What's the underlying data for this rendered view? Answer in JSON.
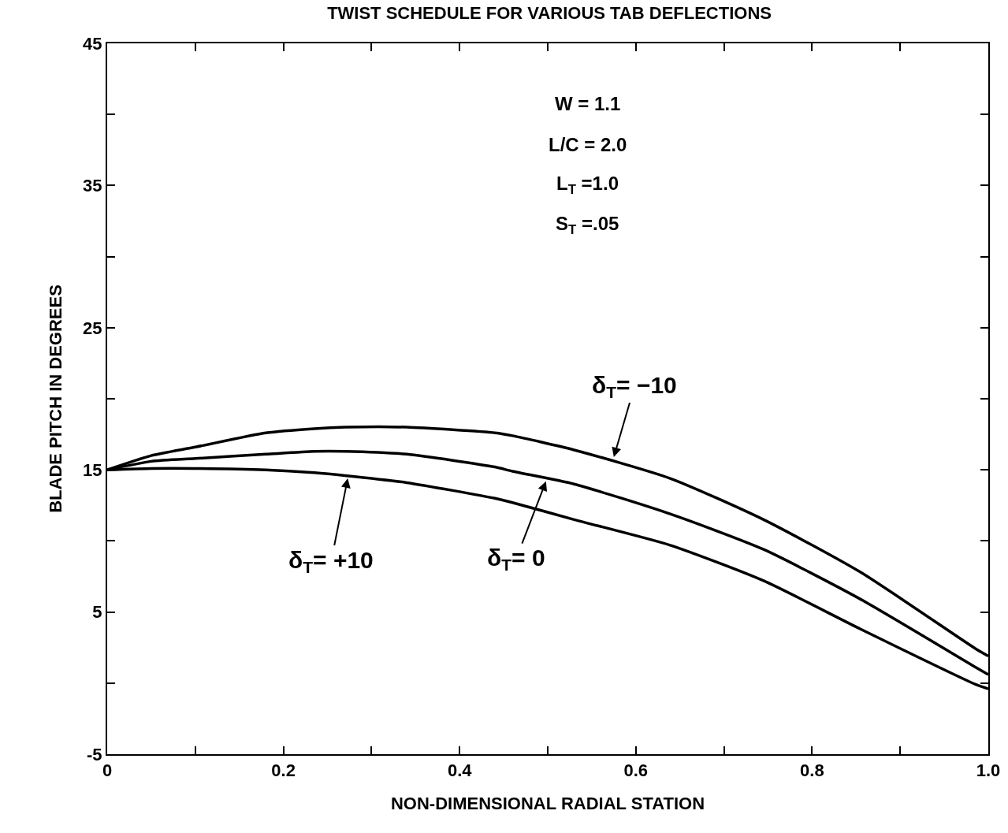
{
  "chart_data": {
    "type": "line",
    "title": "TWIST SCHEDULE FOR VARIOUS TAB DEFLECTIONS",
    "xlabel": "NON-DIMENSIONAL RADIAL STATION",
    "ylabel": "BLADE PITCH IN DEGREES",
    "x": [
      0,
      0.05,
      0.1,
      0.18,
      0.235,
      0.27,
      0.34,
      0.44,
      0.46,
      0.53,
      0.639,
      0.745,
      0.855,
      0.986,
      1.0
    ],
    "series": [
      {
        "color": "#000000",
        "values": [
          15,
          16.0,
          16.6,
          17.6,
          17.9,
          18.0,
          18.0,
          17.6,
          17.4,
          16.4,
          14.4,
          11.5,
          7.8,
          2.4,
          1.9
        ]
      },
      {
        "color": "#000000",
        "values": [
          15,
          15.6,
          15.8,
          16.1,
          16.3,
          16.3,
          16.1,
          15.2,
          14.9,
          14.0,
          11.9,
          9.4,
          5.9,
          1.1,
          0.6
        ]
      },
      {
        "color": "#000000",
        "values": [
          15,
          15.1,
          15.1,
          15.0,
          14.8,
          14.6,
          14.1,
          13.0,
          12.7,
          11.5,
          9.7,
          7.2,
          3.8,
          -0.1,
          -0.4
        ]
      }
    ],
    "xlim": [
      0,
      1.0
    ],
    "ylim": [
      -5,
      45
    ],
    "xticks": [
      0,
      {
        "value": 0.1,
        "label": null
      },
      0.2,
      {
        "value": 0.3,
        "label": null
      },
      0.4,
      {
        "value": 0.5,
        "label": null
      },
      0.6,
      {
        "value": 0.7,
        "label": null
      },
      0.8,
      {
        "value": 0.9,
        "label": null
      },
      {
        "value": 1.0,
        "label": "1.0"
      }
    ],
    "yticks": [
      -5,
      {
        "value": 0,
        "label": null
      },
      5,
      {
        "value": 10,
        "label": null
      },
      15,
      {
        "value": 20,
        "label": null
      },
      25,
      {
        "value": 30,
        "label": null
      },
      35,
      {
        "value": 40,
        "label": null
      },
      45
    ],
    "annotations": [
      {
        "text": "δ$_{T}$= −10",
        "x": 0.575,
        "y": 15.9
      },
      {
        "text": "δ$_{T}$= +10",
        "x": 0.273,
        "y": 14.4
      },
      {
        "text": "δ$_{T}$= 0",
        "x": 0.498,
        "y": 14.2
      },
      "W = 1.1",
      "L/C = 2.0",
      "L$_{T}$ =1.0",
      "S$_{T}$ =.05"
    ],
    "marker": "none",
    "line_style": "solid"
  }
}
